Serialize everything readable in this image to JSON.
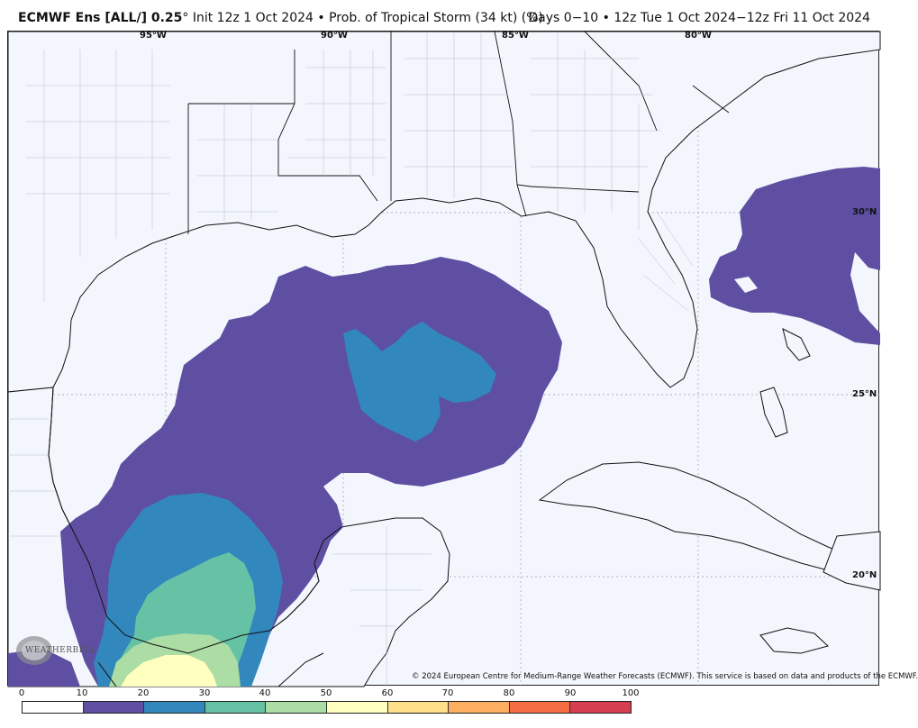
{
  "header": {
    "model": "ECMWF Ens [ALL/] 0.25",
    "degree": "°",
    "init": " Init 12z 1 Oct 2024",
    "bullet": "•",
    "product": "Prob. of Tropical Storm (34 kt) (%)",
    "range": "Days 0−10 • 12z Tue 1 Oct 2024−12z Fri 11 Oct 2024"
  },
  "map": {
    "longitude_labels": [
      "95°W",
      "90°W",
      "85°W",
      "80°W"
    ],
    "latitude_labels": [
      "30°N",
      "25°N",
      "20°N"
    ],
    "background_color": "#f3f6fc",
    "logo_icon": "weatherbell-logo-icon",
    "logo_text": "WEATHERBELL"
  },
  "copyright": "© 2024 European Centre for Medium-Range Weather Forecasts (ECMWF). This service is based on data and products of the ECMWF.",
  "colorbar": {
    "ticks": [
      "0",
      "10",
      "20",
      "30",
      "40",
      "50",
      "60",
      "70",
      "80",
      "90",
      "100"
    ],
    "colors": [
      "#ffffff",
      "#5e4fa2",
      "#3288bd",
      "#66c2a5",
      "#abdda4",
      "#ffffbf",
      "#fee08b",
      "#fdae61",
      "#f46d43",
      "#d53e4f",
      "#9e0142"
    ]
  }
}
